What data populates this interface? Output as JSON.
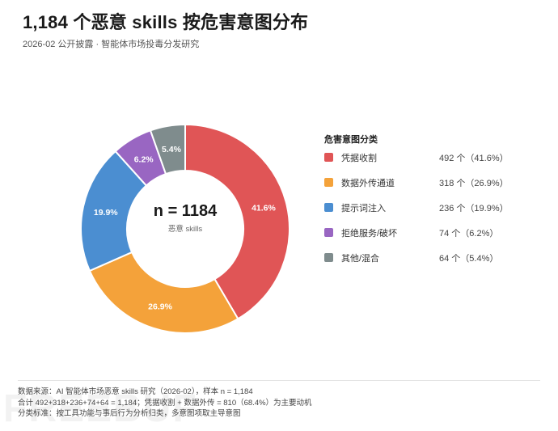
{
  "header": {
    "title": "1,184 个恶意 skills 按危害意图分布",
    "subtitle": "2026-02 公开披露 · 智能体市场投毒分发研究"
  },
  "chart_data": {
    "type": "pie",
    "donut": true,
    "center_value": "n = 1184",
    "center_label": "恶意 skills",
    "legend_title": "危害意图分类",
    "legend_position": "right",
    "slices": [
      {
        "label": "凭据收割",
        "value": 492,
        "value_text": "492 个（41.6%）",
        "pct_label": "41.6%",
        "color": "#e05556"
      },
      {
        "label": "数据外传通道",
        "value": 318,
        "value_text": "318 个（26.9%）",
        "pct_label": "26.9%",
        "color": "#f4a23a"
      },
      {
        "label": "提示词注入",
        "value": 236,
        "value_text": "236 个（19.9%）",
        "pct_label": "19.9%",
        "color": "#4b8ed1"
      },
      {
        "label": "拒绝服务/破坏",
        "value": 74,
        "value_text": "74 个（6.2%）",
        "pct_label": "6.2%",
        "color": "#9966c2"
      },
      {
        "label": "其他/混合",
        "value": 64,
        "value_text": "64 个（5.4%）",
        "pct_label": "5.4%",
        "color": "#7f8c8d"
      }
    ]
  },
  "footer": {
    "line1": "数据来源：AI 智能体市场恶意 skills 研究（2026-02），样本 n = 1,184",
    "line2": "合计 492+318+236+74+64 = 1,184；凭据收割 + 数据外传 = 810（68.4%）为主要动机",
    "line3": "分类标准：按工具功能与事后行为分析归类，多意图项取主导意图"
  },
  "watermark": "FREEBUF"
}
